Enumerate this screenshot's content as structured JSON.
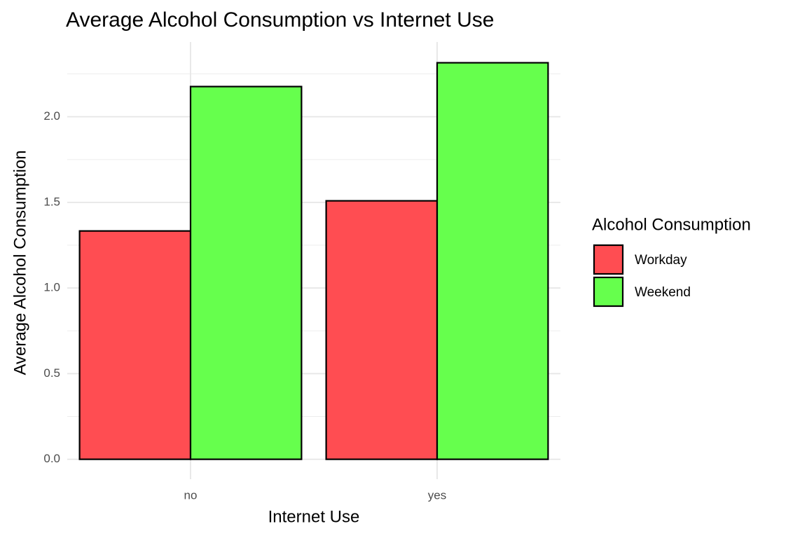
{
  "chart_data": {
    "type": "bar",
    "title": "Average Alcohol Consumption vs Internet Use",
    "x_label": "Internet Use",
    "y_label": "Average Alcohol Consumption",
    "categories": [
      "no",
      "yes"
    ],
    "series": [
      {
        "name": "Workday",
        "color": "#ff4d52",
        "values": [
          1.333,
          1.509
        ]
      },
      {
        "name": "Weekend",
        "color": "#66ff4d",
        "values": [
          2.176,
          2.315
        ]
      }
    ],
    "legend_title": "Alcohol Consumption",
    "legend": "right",
    "ylim": [
      -0.116,
      2.436
    ],
    "yticks": [
      {
        "value": 0,
        "label": "0.0"
      },
      {
        "value": 0.5,
        "label": "0.5"
      },
      {
        "value": 1,
        "label": "1.0"
      },
      {
        "value": 1.5,
        "label": "1.5"
      },
      {
        "value": 2,
        "label": "2.0"
      }
    ],
    "grid": true
  }
}
